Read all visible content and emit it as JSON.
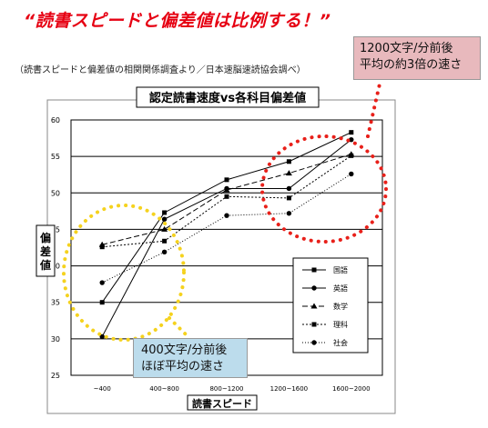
{
  "page": {
    "headline": "“読書スピードと偏差値は比例する！”",
    "source": "（読書スピードと偏差値の相関関係調査より／日本速脳速読協会調べ）"
  },
  "callouts": {
    "fast": {
      "line1": "1200文字/分前後",
      "line2": "平均の約3倍の速さ"
    },
    "slow": {
      "line1": "400文字/分前後",
      "line2": "ほぼ平均の速さ"
    }
  },
  "colors": {
    "headline": "#e60012",
    "fast_circle": "#e8201a",
    "slow_circle": "#f5d21e",
    "series_line": "#000000"
  },
  "chart_data": {
    "type": "line",
    "title": "認定読書速度vs各科目偏差値",
    "xlabel": "読書スピード",
    "ylabel": "偏差値",
    "categories": [
      "~400",
      "400~800",
      "800~1200",
      "1200~1600",
      "1600~2000"
    ],
    "ylim": [
      25,
      60
    ],
    "yticks": [
      25,
      30,
      35,
      40,
      45,
      50,
      55,
      60
    ],
    "grid": true,
    "legend_position": "right",
    "series": [
      {
        "name": "国語",
        "values": [
          35.0,
          47.3,
          51.8,
          54.3,
          58.3
        ],
        "dash": "",
        "marker": "square"
      },
      {
        "name": "英語",
        "values": [
          30.3,
          46.4,
          50.6,
          50.6,
          57.3
        ],
        "dash": "",
        "marker": "circle"
      },
      {
        "name": "数学",
        "values": [
          42.9,
          45.0,
          50.4,
          52.7,
          55.3
        ],
        "dash": "6,3",
        "marker": "triangle"
      },
      {
        "name": "理科",
        "values": [
          42.6,
          43.4,
          49.5,
          49.3,
          55.1
        ],
        "dash": "2,2",
        "marker": "square"
      },
      {
        "name": "社会",
        "values": [
          37.7,
          41.9,
          46.9,
          47.2,
          52.6
        ],
        "dash": "1,2",
        "marker": "circle"
      }
    ]
  }
}
